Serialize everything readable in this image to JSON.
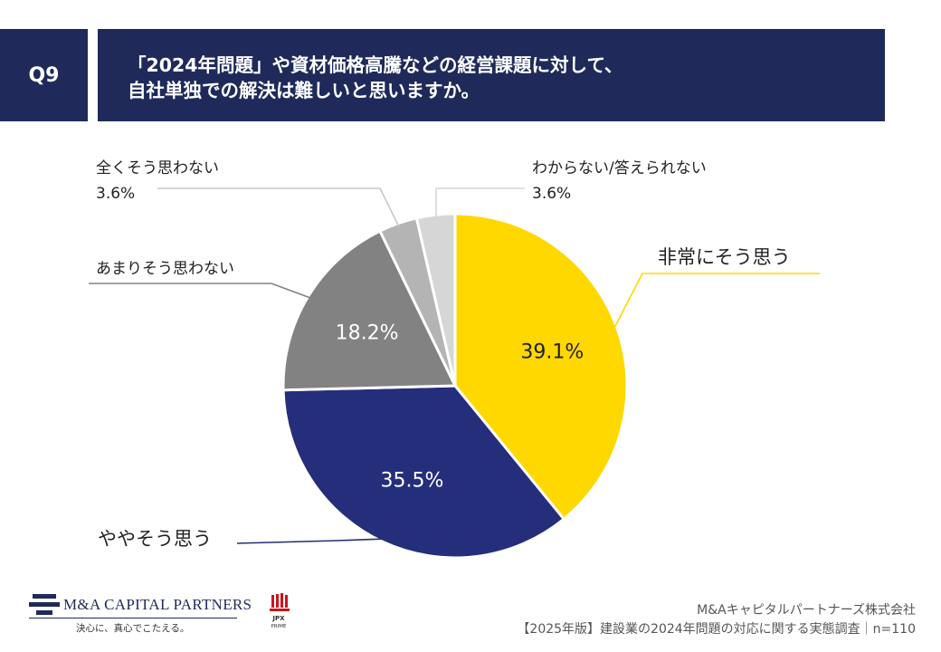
{
  "header": {
    "question_id": "Q9",
    "title_line1": "「2024年問題」や資材価格高騰などの経営課題に対して、",
    "title_line2": "自社単独での解決は難しいと思いますか。"
  },
  "chart_data": {
    "type": "pie",
    "slices": [
      {
        "label": "非常にそう思う",
        "value": 39.1,
        "value_text": "39.1%",
        "color": "#ffd800",
        "label_color": "#222222"
      },
      {
        "label": "ややそう思う",
        "value": 35.5,
        "value_text": "35.5%",
        "color": "#252e7a",
        "label_color": "#ffffff"
      },
      {
        "label": "あまりそう思わない",
        "value": 18.2,
        "value_text": "18.2%",
        "color": "#828282",
        "label_color": "#ffffff"
      },
      {
        "label": "全くそう思わない",
        "value": 3.6,
        "value_text": "3.6%",
        "color": "#b4b4b4",
        "label_color": "#222222"
      },
      {
        "label": "わからない/答えられない",
        "value": 3.6,
        "value_text": "3.6%",
        "color": "#d6d6d6",
        "label_color": "#222222"
      }
    ]
  },
  "logo": {
    "name": "M&A CAPITAL PARTNERS",
    "tagline": "決心に、真心でこたえる。",
    "badge_line1": "JPX",
    "badge_line2": "PRIME"
  },
  "footer": {
    "company": "M&Aキャピタルパートナーズ株式会社",
    "source": "【2025年版】建設業の2024年問題の対応に関する実態調査｜n=110"
  }
}
